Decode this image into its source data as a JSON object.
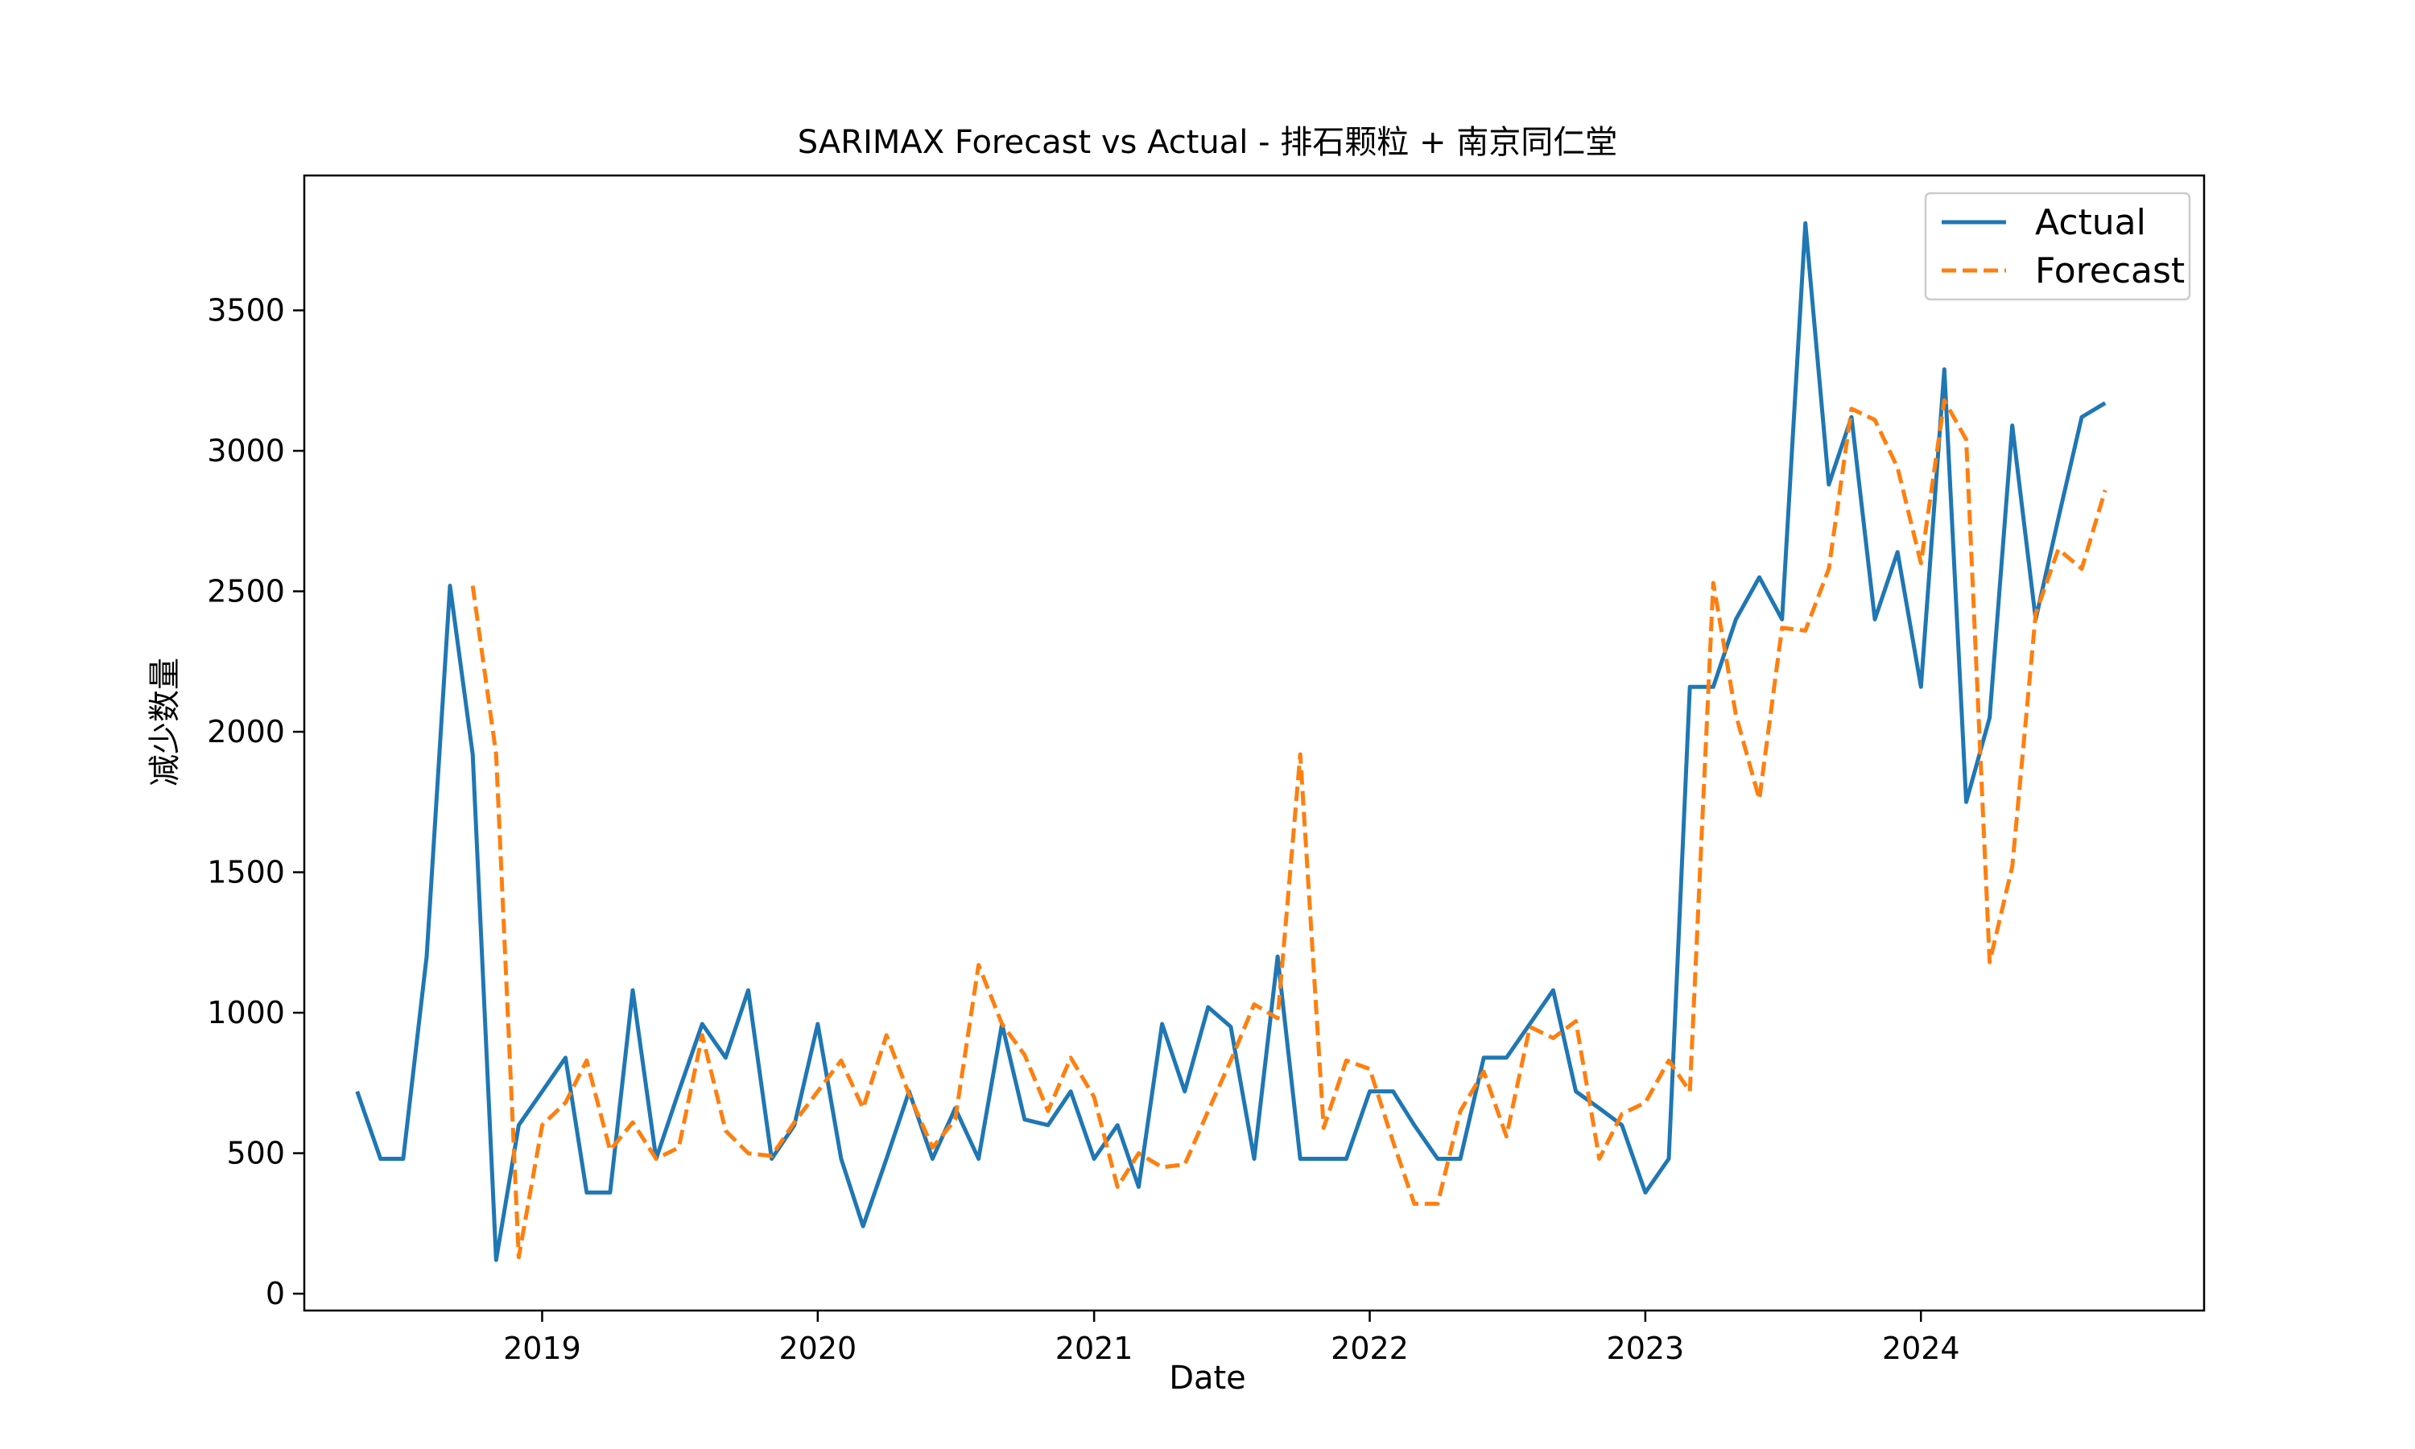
{
  "chart_data": {
    "type": "line",
    "title": "SARIMAX Forecast vs Actual - 排石颗粒 + 南京同仁堂",
    "xlabel": "Date",
    "ylabel": "减少数量",
    "xlim": [
      "2018-02-20",
      "2025-01-10"
    ],
    "ylim": [
      -60,
      3980
    ],
    "x_ticks": [
      "2019",
      "2020",
      "2021",
      "2022",
      "2023",
      "2024"
    ],
    "y_ticks": [
      0,
      500,
      1000,
      1500,
      2000,
      2500,
      3000,
      3500
    ],
    "grid": false,
    "legend_position": "upper right",
    "x": [
      "2018-05",
      "2018-06",
      "2018-07",
      "2018-08",
      "2018-09",
      "2018-10",
      "2018-11",
      "2018-12",
      "2019-01",
      "2019-02",
      "2019-03",
      "2019-04",
      "2019-05",
      "2019-06",
      "2019-07",
      "2019-08",
      "2019-09",
      "2019-10",
      "2019-11",
      "2019-12",
      "2020-01",
      "2020-02",
      "2020-03",
      "2020-04",
      "2020-05",
      "2020-06",
      "2020-07",
      "2020-08",
      "2020-09",
      "2020-10",
      "2020-11",
      "2020-12",
      "2021-01",
      "2021-02",
      "2021-03",
      "2021-04",
      "2021-05",
      "2021-06",
      "2021-07",
      "2021-08",
      "2021-09",
      "2021-10",
      "2021-11",
      "2021-12",
      "2022-01",
      "2022-02",
      "2022-03",
      "2022-04",
      "2022-05",
      "2022-06",
      "2022-07",
      "2022-08",
      "2022-09",
      "2022-10",
      "2022-11",
      "2022-12",
      "2023-01",
      "2023-02",
      "2023-03",
      "2023-04",
      "2023-05",
      "2023-06",
      "2023-07",
      "2023-08",
      "2023-09",
      "2023-10",
      "2023-11",
      "2023-12",
      "2024-01",
      "2024-02",
      "2024-03",
      "2024-04",
      "2024-05",
      "2024-06",
      "2024-07",
      "2024-08",
      "2024-09"
    ],
    "series": [
      {
        "name": "Actual",
        "color": "#1f77b4",
        "dash": "solid",
        "values": [
          720,
          480,
          480,
          1200,
          2520,
          1920,
          120,
          600,
          720,
          840,
          360,
          360,
          1080,
          480,
          720,
          960,
          840,
          1080,
          480,
          600,
          960,
          480,
          240,
          480,
          720,
          480,
          660,
          480,
          960,
          620,
          600,
          720,
          480,
          600,
          380,
          960,
          720,
          1020,
          950,
          480,
          1200,
          480,
          480,
          480,
          720,
          720,
          600,
          480,
          480,
          840,
          840,
          960,
          1080,
          720,
          660,
          600,
          360,
          480,
          2160,
          2160,
          2400,
          2550,
          2400,
          3810,
          2880,
          3120,
          2400,
          2640,
          2160,
          3290,
          1750,
          2050,
          3090,
          2400,
          2760,
          3120,
          3170
        ]
      },
      {
        "name": "Forecast",
        "color": "#ff7f0e",
        "dash": "dashed",
        "values": [
          null,
          null,
          null,
          null,
          null,
          2520,
          1920,
          130,
          600,
          680,
          830,
          510,
          610,
          480,
          520,
          920,
          580,
          500,
          490,
          610,
          720,
          830,
          660,
          920,
          710,
          520,
          620,
          1170,
          960,
          850,
          650,
          840,
          700,
          380,
          500,
          450,
          460,
          650,
          830,
          1030,
          980,
          1920,
          590,
          830,
          800,
          540,
          320,
          320,
          650,
          790,
          560,
          950,
          910,
          970,
          480,
          640,
          680,
          830,
          720,
          2530,
          2060,
          1760,
          2370,
          2360,
          2580,
          3150,
          3110,
          2940,
          2600,
          3180,
          3040,
          1180,
          1520,
          2420,
          2650,
          2580,
          2860
        ]
      }
    ]
  }
}
